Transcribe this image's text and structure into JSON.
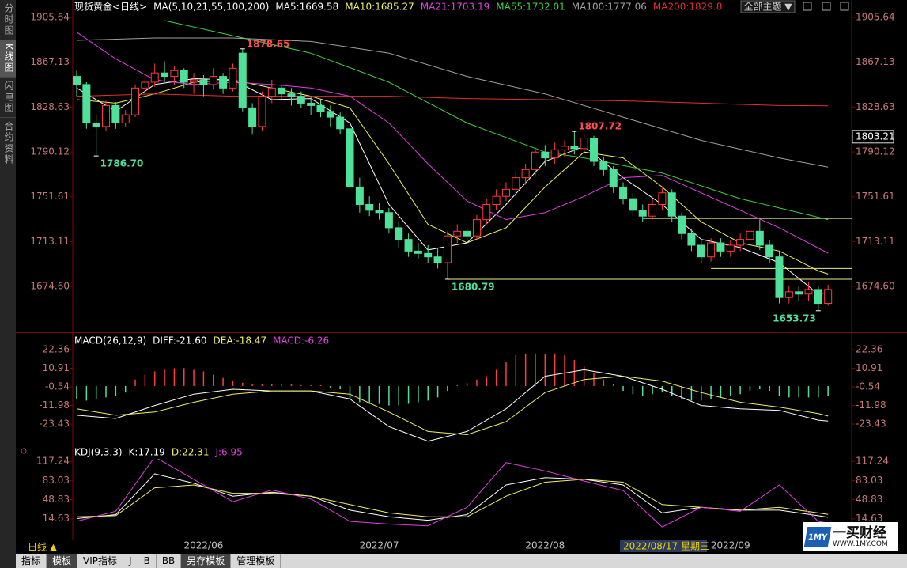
{
  "sidebar": [
    "分时图",
    "K线图",
    "闪电图",
    "合约资料"
  ],
  "theme_button": "全部主题 ▼",
  "chart_data": [
    {
      "type": "candlestick",
      "title": "现货黄金<日线>",
      "indicator": "MA(5,10,21,55,100,200)",
      "title_color": "#ffffff",
      "up_color": "#ff3c3c",
      "down_color": "#4fe09a",
      "open": [
        1855,
        1848,
        1815,
        1812,
        1830,
        1815,
        1822,
        1845,
        1850,
        1858,
        1855,
        1860,
        1850,
        1852,
        1848,
        1855,
        1845,
        1875,
        1828,
        1812,
        1838,
        1845,
        1840,
        1838,
        1832,
        1830,
        1825,
        1820,
        1810,
        1760,
        1745,
        1740,
        1738,
        1725,
        1715,
        1705,
        1703,
        1700,
        1695,
        1718,
        1722,
        1718,
        1732,
        1745,
        1752,
        1758,
        1768,
        1775,
        1790,
        1785,
        1792,
        1795,
        1793,
        1802,
        1782,
        1775,
        1760,
        1750,
        1740,
        1735,
        1745,
        1755,
        1735,
        1720,
        1710,
        1700,
        1712,
        1705,
        1710,
        1715,
        1722,
        1710,
        1700,
        1665,
        1670,
        1668,
        1672,
        1660
      ],
      "high": [
        1860,
        1850,
        1822,
        1834,
        1833,
        1826,
        1848,
        1856,
        1866,
        1868,
        1864,
        1862,
        1858,
        1856,
        1862,
        1858,
        1866,
        1878.65,
        1832,
        1842,
        1852,
        1848,
        1845,
        1842,
        1838,
        1835,
        1830,
        1824,
        1815,
        1768,
        1752,
        1746,
        1742,
        1730,
        1720,
        1712,
        1710,
        1708,
        1722,
        1728,
        1726,
        1736,
        1750,
        1758,
        1764,
        1774,
        1780,
        1794,
        1796,
        1798,
        1800,
        1807.72,
        1806,
        1804,
        1786,
        1778,
        1764,
        1755,
        1745,
        1750,
        1760,
        1758,
        1738,
        1724,
        1714,
        1716,
        1716,
        1714,
        1720,
        1728,
        1732,
        1714,
        1704,
        1675,
        1675,
        1678,
        1675,
        1676
      ],
      "low": [
        1838,
        1810,
        1786.7,
        1808,
        1810,
        1812,
        1820,
        1840,
        1846,
        1850,
        1848,
        1845,
        1840,
        1838,
        1844,
        1840,
        1842,
        1825,
        1805,
        1808,
        1832,
        1834,
        1830,
        1828,
        1822,
        1820,
        1812,
        1805,
        1755,
        1738,
        1735,
        1732,
        1720,
        1708,
        1700,
        1698,
        1695,
        1690,
        1680.79,
        1712,
        1714,
        1715,
        1728,
        1740,
        1748,
        1752,
        1762,
        1770,
        1778,
        1780,
        1786,
        1788,
        1790,
        1778,
        1770,
        1755,
        1745,
        1735,
        1730,
        1732,
        1740,
        1730,
        1715,
        1705,
        1695,
        1696,
        1700,
        1700,
        1705,
        1710,
        1706,
        1695,
        1660,
        1660,
        1662,
        1662,
        1653.73,
        1658
      ],
      "close": [
        1848,
        1815,
        1812,
        1830,
        1815,
        1822,
        1845,
        1850,
        1858,
        1855,
        1860,
        1850,
        1852,
        1848,
        1855,
        1845,
        1862,
        1828,
        1812,
        1838,
        1845,
        1840,
        1838,
        1832,
        1830,
        1825,
        1820,
        1810,
        1760,
        1745,
        1740,
        1738,
        1725,
        1715,
        1705,
        1703,
        1700,
        1695,
        1718,
        1722,
        1718,
        1732,
        1745,
        1752,
        1758,
        1768,
        1775,
        1790,
        1785,
        1792,
        1795,
        1793,
        1802,
        1782,
        1775,
        1760,
        1750,
        1740,
        1735,
        1745,
        1755,
        1735,
        1720,
        1710,
        1700,
        1712,
        1705,
        1710,
        1715,
        1722,
        1710,
        1700,
        1665,
        1670,
        1668,
        1672,
        1660,
        1672
      ],
      "series": [
        {
          "name": "MA5:1669.58",
          "color": "#ffffff",
          "x": [
            0,
            4,
            8,
            12,
            16,
            20,
            24,
            28,
            32,
            36,
            40,
            44,
            48,
            52,
            56,
            60,
            64,
            68,
            72,
            76,
            77
          ],
          "values": [
            1845,
            1825,
            1848,
            1853,
            1852,
            1835,
            1836,
            1815,
            1745,
            1706,
            1712,
            1745,
            1782,
            1795,
            1768,
            1745,
            1715,
            1708,
            1695,
            1668,
            1669.58
          ]
        },
        {
          "name": "MA10:1685.27",
          "color": "#f0f060",
          "x": [
            0,
            4,
            8,
            12,
            16,
            20,
            24,
            28,
            32,
            36,
            40,
            44,
            48,
            52,
            56,
            60,
            64,
            68,
            72,
            76,
            77
          ],
          "values": [
            1835,
            1832,
            1840,
            1850,
            1852,
            1845,
            1838,
            1828,
            1780,
            1728,
            1712,
            1725,
            1760,
            1790,
            1785,
            1760,
            1730,
            1712,
            1705,
            1688,
            1685.27
          ]
        },
        {
          "name": "MA21:1703.19",
          "color": "#e040e0",
          "x": [
            0,
            4,
            8,
            12,
            16,
            20,
            24,
            28,
            32,
            36,
            40,
            44,
            48,
            52,
            56,
            60,
            64,
            68,
            72,
            77
          ],
          "values": [
            1893,
            1870,
            1852,
            1848,
            1850,
            1848,
            1845,
            1838,
            1815,
            1780,
            1748,
            1732,
            1738,
            1752,
            1768,
            1770,
            1755,
            1740,
            1725,
            1703.19
          ]
        },
        {
          "name": "MA55:1732.01",
          "color": "#40d040",
          "x": [
            9,
            16,
            24,
            32,
            40,
            48,
            52,
            60,
            68,
            77
          ],
          "values": [
            1903,
            1890,
            1875,
            1850,
            1815,
            1790,
            1785,
            1772,
            1750,
            1732.01
          ]
        },
        {
          "name": "MA100:1777.06",
          "color": "#a0a0a0",
          "x": [
            0,
            8,
            16,
            24,
            32,
            40,
            48,
            56,
            64,
            72,
            77
          ],
          "values": [
            1886,
            1888,
            1888,
            1885,
            1875,
            1855,
            1840,
            1820,
            1800,
            1785,
            1777.06
          ]
        },
        {
          "name": "MA200:1829.8",
          "color": "#e03030",
          "x": [
            0,
            8,
            16,
            24,
            32,
            40,
            48,
            56,
            64,
            72,
            77
          ],
          "values": [
            1838,
            1840,
            1838,
            1838,
            1838,
            1836,
            1835,
            1834,
            1832,
            1830,
            1829.8
          ]
        }
      ],
      "annotations": [
        {
          "text": "1878.65",
          "value": 1878.65,
          "at": 17,
          "color": "#ff5050"
        },
        {
          "text": "1786.70",
          "value": 1786.7,
          "at": 2,
          "color": "#50e0a0"
        },
        {
          "text": "1807.72",
          "value": 1807.72,
          "at": 51,
          "color": "#ff5050"
        },
        {
          "text": "1680.79",
          "value": 1680.79,
          "at": 38,
          "color": "#50e0a0"
        },
        {
          "text": "1653.73",
          "value": 1653.73,
          "at": 76,
          "color": "#50e0a0"
        }
      ],
      "hlines": [
        {
          "value": 1680.79,
          "from": 38
        },
        {
          "value": 1690,
          "from": 65
        },
        {
          "value": 1733,
          "from": 58
        }
      ],
      "hline_color": "#e8f08a",
      "cursor": {
        "label": "1803.21",
        "value": 1803.21
      },
      "ylim": [
        1636.6,
        1915.2
      ],
      "yticks": [
        1905.64,
        1867.13,
        1828.63,
        1790.12,
        1751.61,
        1713.11,
        {
          "value": 1674.6,
          "label": "1674.60"
        }
      ]
    },
    {
      "type": "macd",
      "title": "MACD(26,12,9)",
      "title_color": "#ffffff",
      "histogram_name": "MACD:-6.26",
      "histogram_color": "#e040e0",
      "up_color": "#ff3c3c",
      "down_color": "#4fe09a",
      "values": [
        -8,
        -9,
        -8,
        -7,
        -6,
        -4,
        4,
        7,
        9,
        10,
        11,
        11,
        10,
        9,
        7,
        5,
        3,
        2,
        1,
        1,
        1,
        1,
        1,
        0.5,
        0.5,
        0.5,
        -1,
        -2,
        -8,
        -10,
        -11,
        -11,
        -12,
        -12,
        -11,
        -10,
        -9,
        -7,
        -3,
        0.5,
        2,
        4,
        6,
        10,
        15,
        19,
        20,
        20,
        20,
        20,
        19,
        16,
        12,
        8,
        4,
        1,
        -3,
        -5,
        -6,
        -5,
        -4,
        -6,
        -8,
        -9,
        -9,
        -8,
        -7,
        -6,
        -5,
        -3,
        -2,
        -3,
        -6,
        -7,
        -7,
        -7,
        -7,
        -6.26
      ],
      "series": [
        {
          "name": "DIFF:-21.60",
          "color": "#ffffff",
          "x": [
            0,
            4,
            8,
            12,
            16,
            20,
            24,
            28,
            32,
            36,
            40,
            44,
            48,
            52,
            56,
            60,
            64,
            68,
            72,
            76,
            77
          ],
          "values": [
            -18,
            -20,
            -12,
            -5,
            -2,
            -3,
            -3,
            -8,
            -25,
            -34,
            -28,
            -14,
            6,
            10,
            6,
            -2,
            -12,
            -14,
            -15,
            -21,
            -21.6
          ]
        },
        {
          "name": "DEA:-18.47",
          "color": "#f0f060",
          "x": [
            0,
            4,
            8,
            12,
            16,
            20,
            24,
            28,
            32,
            36,
            40,
            44,
            48,
            52,
            56,
            60,
            64,
            68,
            72,
            76,
            77
          ],
          "values": [
            -14,
            -18,
            -16,
            -10,
            -5,
            -3,
            -3,
            -5,
            -16,
            -28,
            -30,
            -22,
            -4,
            4,
            6,
            3,
            -4,
            -10,
            -13,
            -17,
            -18.47
          ]
        }
      ],
      "ylim": [
        -35.1,
        29.2
      ],
      "yticks": [
        22.36,
        10.91,
        -0.54,
        -11.98,
        -23.43
      ]
    },
    {
      "type": "line",
      "title": "KDJ(9,3,3)",
      "title_color": "#ffffff",
      "series": [
        {
          "name": "K:17.19",
          "color": "#ffffff",
          "x": [
            0,
            4,
            8,
            12,
            16,
            20,
            24,
            28,
            32,
            36,
            40,
            44,
            48,
            52,
            56,
            60,
            64,
            68,
            72,
            76,
            77
          ],
          "values": [
            15,
            22,
            95,
            78,
            55,
            62,
            55,
            30,
            18,
            12,
            22,
            75,
            88,
            85,
            75,
            25,
            35,
            30,
            30,
            20,
            17.19
          ]
        },
        {
          "name": "D:22.31",
          "color": "#f0f060",
          "x": [
            0,
            4,
            8,
            12,
            16,
            20,
            24,
            28,
            32,
            36,
            40,
            44,
            48,
            52,
            56,
            60,
            64,
            68,
            72,
            76,
            77
          ],
          "values": [
            18,
            20,
            70,
            75,
            60,
            60,
            55,
            40,
            25,
            18,
            18,
            55,
            80,
            85,
            80,
            40,
            35,
            30,
            35,
            25,
            22.31
          ]
        },
        {
          "name": "J:6.95",
          "color": "#e040e0",
          "x": [
            0,
            4,
            8,
            12,
            16,
            20,
            24,
            28,
            32,
            36,
            40,
            44,
            48,
            52,
            56,
            60,
            64,
            68,
            72,
            76,
            77
          ],
          "values": [
            10,
            28,
            125,
            85,
            45,
            66,
            50,
            10,
            5,
            2,
            35,
            115,
            100,
            82,
            65,
            0,
            35,
            28,
            75,
            10,
            6.95
          ]
        }
      ],
      "ylim": [
        -33.8,
        135.8
      ],
      "yticks": [
        117.24,
        83.03,
        48.83,
        14.63
      ],
      "x_labels": [
        {
          "label": "2022/06",
          "at": 13
        },
        {
          "label": "2022/07",
          "at": 31
        },
        {
          "label": "2022/08",
          "at": 48
        },
        {
          "label": "2022/09",
          "at": 67
        }
      ],
      "cursor_date": {
        "label": "2022/08/17 星期三",
        "at": 56
      }
    }
  ],
  "bottom_bar": {
    "period": "日线 ▲",
    "tabs": [
      "指标",
      "模板",
      "VIP指标",
      "J",
      "B",
      "BB",
      "另存模板",
      "管理模板"
    ]
  },
  "logo": {
    "icon": "1MY",
    "name": "一买财经",
    "url": "WWW.1MY.COM"
  }
}
